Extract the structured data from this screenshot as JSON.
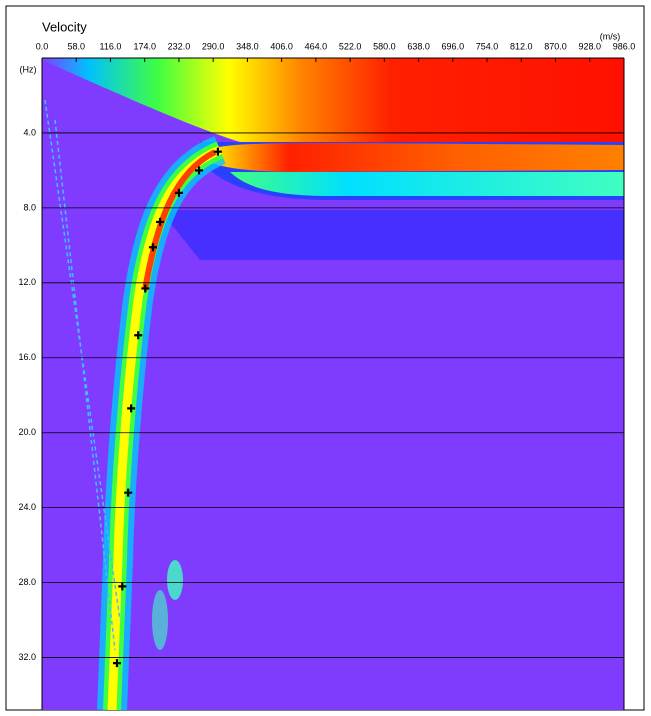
{
  "chart_data": {
    "type": "scatter",
    "title": "Velocity",
    "x_label": "(m/s)",
    "y_label": "(Hz)",
    "x": [
      298,
      266,
      232,
      200,
      188,
      175,
      163,
      151,
      146,
      136,
      127
    ],
    "values": [
      5.0,
      6.0,
      7.2,
      8.75,
      10.1,
      12.3,
      14.8,
      18.7,
      23.2,
      28.2,
      32.3
    ],
    "color": "#000000",
    "xlim": [
      0,
      986
    ],
    "ylim": [
      0,
      34.8
    ],
    "y_reversed": true,
    "grid": true,
    "xticks": [
      {
        "value": 0,
        "label": "0.0"
      },
      {
        "value": 58,
        "label": "58.0"
      },
      {
        "value": 116,
        "label": "116.0"
      },
      {
        "value": 174,
        "label": "174.0"
      },
      {
        "value": 232,
        "label": "232.0"
      },
      {
        "value": 290,
        "label": "290.0"
      },
      {
        "value": 348,
        "label": "348.0"
      },
      {
        "value": 406,
        "label": "406.0"
      },
      {
        "value": 464,
        "label": "464.0"
      },
      {
        "value": 522,
        "label": "522.0"
      },
      {
        "value": 580,
        "label": "580.0"
      },
      {
        "value": 638,
        "label": "638.0"
      },
      {
        "value": 696,
        "label": "696.0"
      },
      {
        "value": 754,
        "label": "754.0"
      },
      {
        "value": 812,
        "label": "812.0"
      },
      {
        "value": 870,
        "label": "870.0"
      },
      {
        "value": 928,
        "label": "928.0"
      },
      {
        "value": 986,
        "label": "986.0"
      }
    ],
    "yticks": [
      {
        "value": 4,
        "label": "4.0"
      },
      {
        "value": 8,
        "label": "8.0"
      },
      {
        "value": 12,
        "label": "12.0"
      },
      {
        "value": 16,
        "label": "16.0"
      },
      {
        "value": 20,
        "label": "20.0"
      },
      {
        "value": 24,
        "label": "24.0"
      },
      {
        "value": 28,
        "label": "28.0"
      },
      {
        "value": 32,
        "label": "32.0"
      }
    ]
  }
}
